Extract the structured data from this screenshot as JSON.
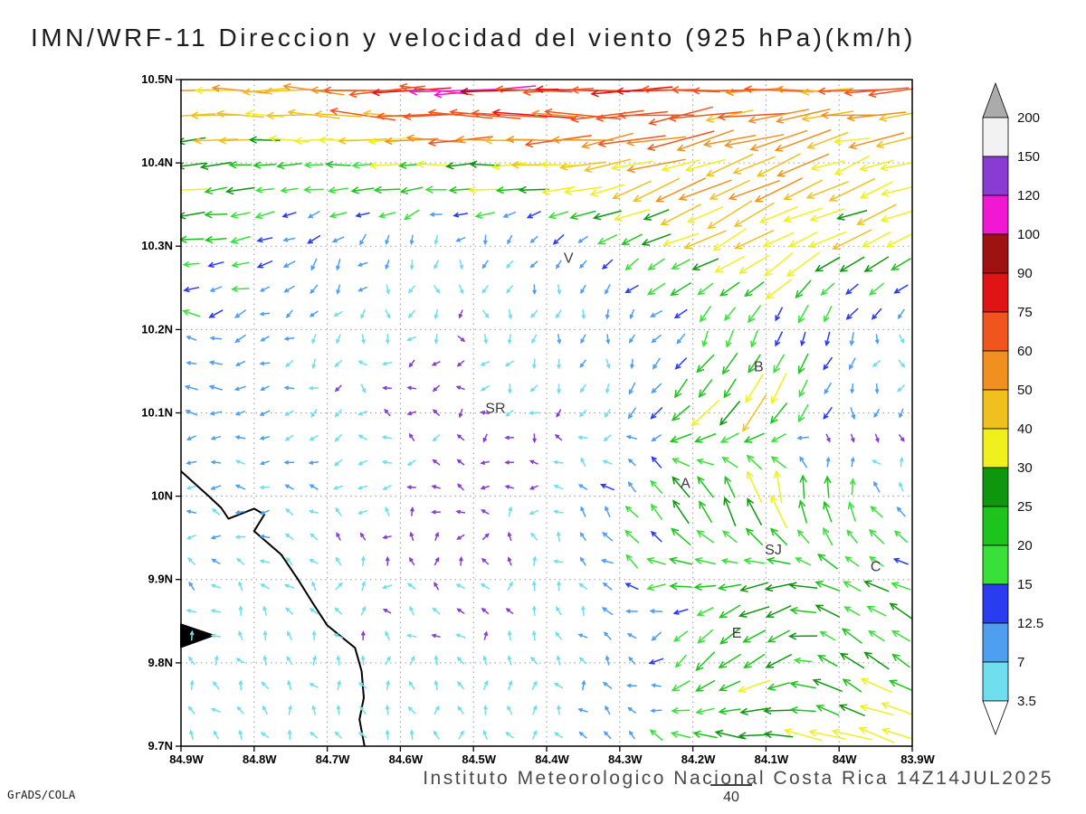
{
  "chart_data": {
    "type": "vector-field",
    "title": "IMN/WRF-11 Direccion y velocidad del viento (925 hPa)(km/h)",
    "caption": "Instituto Meteorologico Nacional Costa Rica 14Z14JUL2025",
    "credit": "GrADS/COLA",
    "reference_vector_label": "40",
    "x_axis": {
      "start": 84.9,
      "end": 83.9,
      "tick_values": [
        84.9,
        84.8,
        84.7,
        84.6,
        84.5,
        84.4,
        84.3,
        84.2,
        84.1,
        84.0,
        83.9
      ],
      "tick_labels": [
        "84.9W",
        "84.8W",
        "84.7W",
        "84.6W",
        "84.5W",
        "84.4W",
        "84.3W",
        "84.2W",
        "84.1W",
        "84W",
        "83.9W"
      ]
    },
    "y_axis": {
      "start": 10.5,
      "end": 9.7,
      "tick_values": [
        10.5,
        10.4,
        10.3,
        10.2,
        10.1,
        10.0,
        9.9,
        9.8,
        9.7
      ],
      "tick_labels": [
        "10.5N",
        "10.4N",
        "10.3N",
        "10.2N",
        "10.1N",
        "10N",
        "9.9N",
        "9.8N",
        "9.7N"
      ]
    },
    "colorbar": {
      "levels": [
        3.5,
        7,
        12.5,
        15,
        20,
        25,
        30,
        40,
        50,
        60,
        75,
        90,
        100,
        120,
        150,
        200
      ],
      "labels_top_to_bottom": [
        "200",
        "150",
        "120",
        "100",
        "90",
        "75",
        "60",
        "50",
        "40",
        "30",
        "25",
        "20",
        "15",
        "12.5",
        "7",
        "3.5"
      ],
      "colors_low_to_high": [
        "#6fdff0",
        "#4f9ff0",
        "#2a3cf0",
        "#3ae03a",
        "#1cc41c",
        "#0f960f",
        "#f0f01e",
        "#f0c01e",
        "#f0901e",
        "#f0551e",
        "#e01414",
        "#9e1212",
        "#f018d2",
        "#8a3cd2",
        "#f2f2f2"
      ],
      "under_color": "#ffffff",
      "over_color": "#ababab",
      "calm_color": "#8a3cd2"
    },
    "stations": [
      {
        "label": "V",
        "lon": 84.37,
        "lat": 10.28
      },
      {
        "label": "B",
        "lon": 84.11,
        "lat": 10.15
      },
      {
        "label": "SR",
        "lon": 84.47,
        "lat": 10.1
      },
      {
        "label": "A",
        "lon": 84.21,
        "lat": 10.01
      },
      {
        "label": "SJ",
        "lon": 84.09,
        "lat": 9.93
      },
      {
        "label": "C",
        "lon": 83.95,
        "lat": 9.91
      },
      {
        "label": "E",
        "lon": 84.14,
        "lat": 9.83
      }
    ],
    "coastline": [
      {
        "closed": false,
        "points": [
          [
            84.9,
            10.03
          ],
          [
            84.862,
            10.0
          ],
          [
            84.845,
            9.986
          ],
          [
            84.835,
            9.973
          ],
          [
            84.8,
            9.985
          ],
          [
            84.786,
            9.978
          ],
          [
            84.8,
            9.958
          ],
          [
            84.763,
            9.93
          ],
          [
            84.74,
            9.9
          ],
          [
            84.72,
            9.872
          ],
          [
            84.7,
            9.845
          ],
          [
            84.662,
            9.818
          ],
          [
            84.653,
            9.79
          ],
          [
            84.65,
            9.758
          ],
          [
            84.656,
            9.732
          ],
          [
            84.649,
            9.7
          ]
        ]
      },
      {
        "closed": true,
        "points": [
          [
            84.9,
            9.846
          ],
          [
            84.856,
            9.833
          ],
          [
            84.9,
            9.819
          ]
        ]
      }
    ],
    "wind_field": {
      "speed_units": "km/h",
      "dir_convention": "degrees arrow points toward; 0=east, 90=north",
      "lons": [
        84.9,
        84.8,
        84.7,
        84.6,
        84.5,
        84.4,
        84.3,
        84.2,
        84.1,
        84.0,
        83.9
      ],
      "lats": [
        10.5,
        10.4,
        10.3,
        10.2,
        10.1,
        10.0,
        9.9,
        9.8,
        9.7
      ],
      "dir_speed": [
        [
          [
            182,
            45
          ],
          [
            180,
            55
          ],
          [
            178,
            62
          ],
          [
            180,
            80
          ],
          [
            182,
            95
          ],
          [
            180,
            88
          ],
          [
            178,
            76
          ],
          [
            181,
            70
          ],
          [
            183,
            64
          ],
          [
            180,
            58
          ],
          [
            178,
            52
          ]
        ],
        [
          [
            184,
            32
          ],
          [
            186,
            26
          ],
          [
            181,
            22
          ],
          [
            178,
            30
          ],
          [
            180,
            36
          ],
          [
            183,
            42
          ],
          [
            196,
            46
          ],
          [
            201,
            48
          ],
          [
            206,
            46
          ],
          [
            201,
            42
          ],
          [
            196,
            40
          ]
        ],
        [
          [
            186,
            20
          ],
          [
            192,
            17
          ],
          [
            232,
            10
          ],
          [
            252,
            7
          ],
          [
            262,
            6
          ],
          [
            256,
            8
          ],
          [
            212,
            16
          ],
          [
            206,
            33
          ],
          [
            211,
            40
          ],
          [
            206,
            34
          ],
          [
            200,
            28
          ]
        ],
        [
          [
            183,
            13
          ],
          [
            202,
            10
          ],
          [
            256,
            6
          ],
          [
            266,
            4
          ],
          [
            271,
            4
          ],
          [
            261,
            6
          ],
          [
            251,
            8
          ],
          [
            241,
            12
          ],
          [
            256,
            15
          ],
          [
            261,
            12
          ],
          [
            266,
            4
          ]
        ],
        [
          [
            180,
            10
          ],
          [
            181,
            9
          ],
          [
            191,
            5
          ],
          [
            201,
            3
          ],
          [
            211,
            3
          ],
          [
            221,
            4
          ],
          [
            231,
            6
          ],
          [
            226,
            30
          ],
          [
            231,
            36
          ],
          [
            271,
            10
          ],
          [
            266,
            6
          ]
        ],
        [
          [
            180,
            8
          ],
          [
            178,
            8
          ],
          [
            171,
            6
          ],
          [
            161,
            4
          ],
          [
            151,
            3
          ],
          [
            141,
            4
          ],
          [
            131,
            15
          ],
          [
            121,
            28
          ],
          [
            101,
            38
          ],
          [
            91,
            20
          ],
          [
            136,
            8
          ]
        ],
        [
          [
            151,
            6
          ],
          [
            146,
            6
          ],
          [
            121,
            4
          ],
          [
            111,
            3
          ],
          [
            101,
            3
          ],
          [
            121,
            5
          ],
          [
            151,
            12
          ],
          [
            181,
            20
          ],
          [
            201,
            25
          ],
          [
            151,
            22
          ],
          [
            156,
            20
          ]
        ],
        [
          [
            121,
            5
          ],
          [
            116,
            6
          ],
          [
            111,
            5
          ],
          [
            101,
            4
          ],
          [
            91,
            4
          ],
          [
            101,
            5
          ],
          [
            121,
            8
          ],
          [
            231,
            24
          ],
          [
            211,
            30
          ],
          [
            141,
            22
          ],
          [
            151,
            25
          ]
        ],
        [
          [
            131,
            5
          ],
          [
            126,
            5
          ],
          [
            121,
            5
          ],
          [
            111,
            5
          ],
          [
            101,
            5
          ],
          [
            111,
            6
          ],
          [
            141,
            10
          ],
          [
            161,
            20
          ],
          [
            171,
            30
          ],
          [
            166,
            35
          ],
          [
            161,
            38
          ]
        ]
      ]
    }
  }
}
